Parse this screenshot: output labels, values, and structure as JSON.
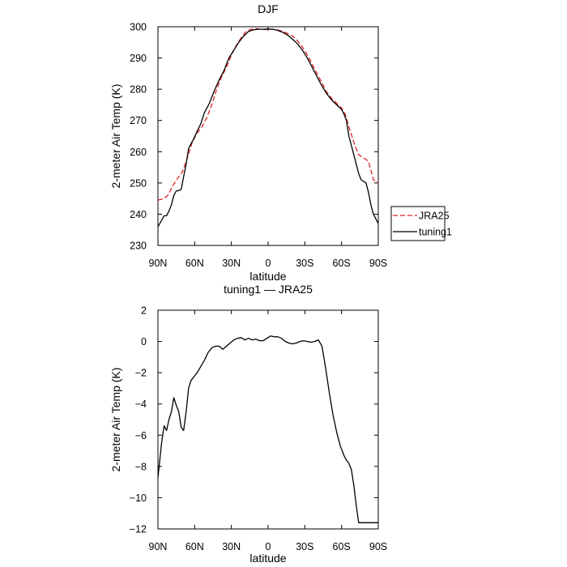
{
  "chart_data": [
    {
      "type": "line",
      "title": "DJF",
      "xlabel": "latitude",
      "ylabel": "2-meter Air Temp (K)",
      "xlim": [
        90,
        -90
      ],
      "ylim": [
        230,
        300
      ],
      "x_ticks": [
        90,
        60,
        30,
        0,
        -30,
        -60,
        -90
      ],
      "x_tick_labels": [
        "90N",
        "60N",
        "30N",
        "0",
        "30S",
        "60S",
        "90S"
      ],
      "y_ticks": [
        230,
        240,
        250,
        260,
        270,
        280,
        290,
        300
      ],
      "y_tick_labels": [
        "230",
        "240",
        "250",
        "260",
        "270",
        "280",
        "290",
        "300"
      ],
      "legend": {
        "placement": "right",
        "entries": [
          "JRA25",
          "tuning1"
        ]
      },
      "series": [
        {
          "name": "JRA25",
          "color": "#dd2222",
          "dash": "dashed",
          "x": [
            90,
            85,
            82,
            78,
            74,
            70,
            66,
            62,
            58,
            54,
            50,
            46,
            42,
            38,
            34,
            30,
            26,
            22,
            18,
            14,
            10,
            6,
            2,
            0,
            -4,
            -8,
            -12,
            -16,
            -20,
            -24,
            -28,
            -32,
            -36,
            -40,
            -44,
            -48,
            -52,
            -56,
            -60,
            -63,
            -66,
            -70,
            -74,
            -78,
            -82,
            -86,
            -90
          ],
          "y": [
            244.5,
            245,
            246,
            249,
            251.5,
            253.5,
            258,
            263,
            266,
            268,
            271,
            275,
            280,
            284,
            287,
            291,
            294,
            296.5,
            298.5,
            299.2,
            299.4,
            299.2,
            299.1,
            299.2,
            299.2,
            299,
            298.5,
            297.8,
            297,
            295.5,
            293.5,
            291,
            288,
            285,
            282,
            279,
            277,
            275.5,
            274,
            272,
            268,
            263,
            259,
            258,
            257,
            251,
            250
          ]
        },
        {
          "name": "tuning1",
          "color": "#000000",
          "dash": "solid",
          "x": [
            90,
            87,
            85,
            83,
            81,
            79,
            77,
            75,
            73,
            71,
            69,
            67,
            65,
            63,
            61,
            58,
            55,
            52,
            48,
            44,
            40,
            36,
            32,
            28,
            24,
            20,
            16,
            12,
            8,
            4,
            0,
            -4,
            -8,
            -12,
            -16,
            -20,
            -24,
            -28,
            -32,
            -36,
            -40,
            -44,
            -48,
            -52,
            -56,
            -60,
            -62,
            -64,
            -66,
            -68,
            -70,
            -72,
            -74,
            -76,
            -78,
            -80,
            -82,
            -84,
            -86,
            -88,
            -90
          ],
          "y": [
            236,
            238,
            239.5,
            239.5,
            241,
            243,
            246,
            247.5,
            247.5,
            248,
            252,
            256,
            261,
            262.5,
            264,
            266.5,
            269,
            272.5,
            275.5,
            279.5,
            283,
            286,
            290,
            292.5,
            295,
            297,
            298.5,
            299,
            299.2,
            299.2,
            299.3,
            299.2,
            298.8,
            298.2,
            297.3,
            296,
            294.5,
            292.5,
            290,
            287,
            284,
            281,
            278.5,
            276.5,
            275,
            273.5,
            272,
            270,
            265,
            262,
            259,
            256,
            253,
            251,
            250.5,
            250,
            247,
            243,
            240,
            238.5,
            237
          ]
        }
      ]
    },
    {
      "type": "line",
      "title": "tuning1 — JRA25",
      "xlabel": "latitude",
      "ylabel": "2-meter Air Temp (K)",
      "xlim": [
        90,
        -90
      ],
      "ylim": [
        -12,
        2
      ],
      "x_ticks": [
        90,
        60,
        30,
        0,
        -30,
        -60,
        -90
      ],
      "x_tick_labels": [
        "90N",
        "60N",
        "30N",
        "0",
        "30S",
        "60S",
        "90S"
      ],
      "y_ticks": [
        -12,
        -10,
        -8,
        -6,
        -4,
        -2,
        0,
        2
      ],
      "y_tick_labels": [
        "−12",
        "−10",
        "−8",
        "−6",
        "−4",
        "−2",
        "0",
        "2"
      ],
      "series": [
        {
          "color": "#000000",
          "dash": "solid",
          "x": [
            90,
            87,
            85,
            83,
            81,
            79,
            77,
            75,
            73,
            71,
            69,
            67,
            65,
            63,
            61,
            58,
            55,
            52,
            49,
            46,
            43,
            40,
            37,
            34,
            31,
            28,
            25,
            22,
            19,
            16,
            13,
            10,
            7,
            4,
            1,
            -2,
            -5,
            -8,
            -11,
            -14,
            -17,
            -20,
            -23,
            -26,
            -29,
            -32,
            -35,
            -38,
            -41,
            -44,
            -47,
            -50,
            -53,
            -56,
            -59,
            -62,
            -64,
            -66,
            -68,
            -70,
            -72,
            -74,
            -76,
            -78,
            -80,
            -82,
            -84,
            -86,
            -88,
            -90
          ],
          "y": [
            -8.7,
            -6.5,
            -5.4,
            -5.7,
            -5.0,
            -4.5,
            -3.6,
            -4.1,
            -4.5,
            -5.5,
            -5.7,
            -4.5,
            -3.0,
            -2.5,
            -2.3,
            -2.0,
            -1.6,
            -1.2,
            -0.7,
            -0.4,
            -0.3,
            -0.3,
            -0.5,
            -0.3,
            -0.1,
            0.1,
            0.2,
            0.25,
            0.1,
            0.2,
            0.1,
            0.15,
            0.05,
            0.05,
            0.2,
            0.35,
            0.3,
            0.3,
            0.2,
            0.0,
            -0.1,
            -0.15,
            -0.1,
            0.0,
            0.05,
            0.0,
            -0.05,
            0.0,
            0.1,
            -0.3,
            -1.7,
            -3.3,
            -4.7,
            -5.8,
            -6.7,
            -7.3,
            -7.6,
            -7.8,
            -8.2,
            -9.2,
            -10.5,
            -11.6,
            -11.6,
            -11.6,
            -11.6,
            -11.6,
            -11.6,
            -11.6,
            -11.6,
            -11.6
          ]
        }
      ]
    }
  ]
}
